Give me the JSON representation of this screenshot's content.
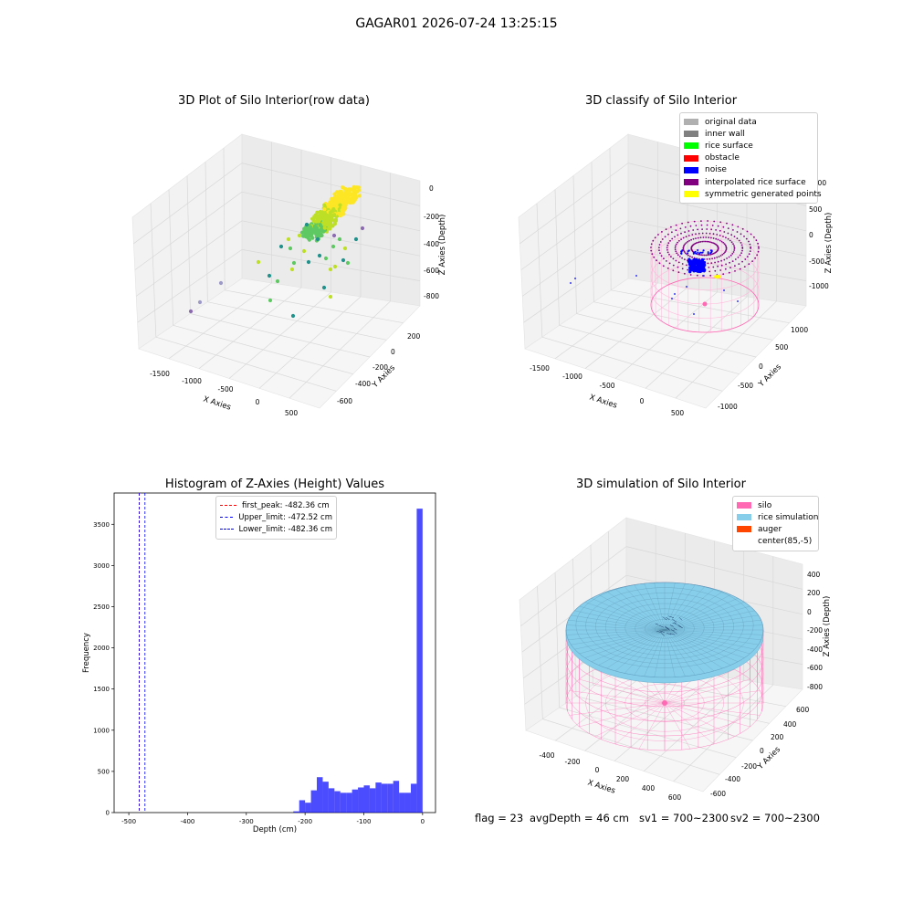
{
  "figure": {
    "suptitle": "GAGAR01 2026-07-24 13:25:15"
  },
  "colors": {
    "rice_gradient": [
      "#3b528b",
      "#21918c",
      "#5ec962",
      "#bddf26",
      "#fde725"
    ],
    "original_data": "#b0b0b0",
    "inner_wall": "#808080",
    "rice_surface": "#00ff00",
    "obstacle": "#ff0000",
    "noise": "#0000ff",
    "interpolated": "#800080",
    "symmetric": "#ffff00",
    "silo": "#ff69b4",
    "rice_simulation": "#87ceeb",
    "auger": "#ff4500",
    "first_peak_line": "#ff0000",
    "limit_lines": "#0000ff",
    "hist_bar": "#0000ff"
  },
  "chart_data": [
    {
      "id": "raw",
      "type": "scatter",
      "projection": "3d",
      "title": "3D Plot of Silo Interior(row data)",
      "xlabel": "X Axies",
      "ylabel": "Y Axies",
      "zlabel": "Z Axies (Depth)",
      "xticks": [
        -1500,
        -1000,
        -500,
        0,
        500
      ],
      "yticks": [
        200,
        0,
        -200,
        -400,
        -600
      ],
      "zticks": [
        0,
        -200,
        -400,
        -600,
        -800
      ],
      "xlim": [
        -1800,
        700
      ],
      "ylim": [
        -700,
        300
      ],
      "zlim": [
        -950,
        50
      ],
      "grid": true,
      "note_points": "dense rice cloud near x≈-200..100, z≈0..-250 plus scattered points down to z≈-900"
    },
    {
      "id": "classify",
      "type": "scatter",
      "projection": "3d",
      "title": "3D classify of Silo Interior",
      "xlabel": "X Axies",
      "ylabel": "Y Axies",
      "zlabel": "Z Axies (Depth)",
      "xticks": [
        -1500,
        -1000,
        -500,
        0,
        500
      ],
      "yticks": [
        1000,
        500,
        0,
        -500,
        -1000
      ],
      "zticks": [
        1000,
        500,
        0,
        -500,
        -1000
      ],
      "legend": [
        "original data",
        "inner wall",
        "rice surface",
        "obstacle",
        "noise",
        "interpolated rice surface",
        "symmetric generated points"
      ],
      "legend_position": "upper right",
      "grid": true
    },
    {
      "id": "hist",
      "type": "bar",
      "title": "Histogram of Z-Axies (Height) Values",
      "xlabel": "Depth (cm)",
      "ylabel": "Frequency",
      "xlim": [
        -525,
        22
      ],
      "ylim": [
        0,
        3880
      ],
      "xticks": [
        -500,
        -400,
        -300,
        -200,
        -100,
        0
      ],
      "yticks": [
        0,
        500,
        1000,
        1500,
        2000,
        2500,
        3000,
        3500
      ],
      "bin_width": 10,
      "bins": [
        {
          "x0": -220,
          "count": 15
        },
        {
          "x0": -210,
          "count": 150
        },
        {
          "x0": -200,
          "count": 120
        },
        {
          "x0": -190,
          "count": 270
        },
        {
          "x0": -180,
          "count": 430
        },
        {
          "x0": -170,
          "count": 375
        },
        {
          "x0": -160,
          "count": 295
        },
        {
          "x0": -150,
          "count": 260
        },
        {
          "x0": -140,
          "count": 240
        },
        {
          "x0": -130,
          "count": 240
        },
        {
          "x0": -120,
          "count": 280
        },
        {
          "x0": -110,
          "count": 305
        },
        {
          "x0": -100,
          "count": 330
        },
        {
          "x0": -90,
          "count": 295
        },
        {
          "x0": -80,
          "count": 365
        },
        {
          "x0": -70,
          "count": 350
        },
        {
          "x0": -60,
          "count": 350
        },
        {
          "x0": -50,
          "count": 385
        },
        {
          "x0": -40,
          "count": 240
        },
        {
          "x0": -30,
          "count": 240
        },
        {
          "x0": -20,
          "count": 350
        },
        {
          "x0": -10,
          "count": 3690
        }
      ],
      "vlines": [
        {
          "label": "first_peak: -482.36 cm",
          "x": -482.36,
          "color": "#ff0000"
        },
        {
          "label": "Upper_limit: -472.52 cm",
          "x": -472.52,
          "color": "#0000ff"
        },
        {
          "label": "Lower_limit: -482.36 cm",
          "x": -482.36,
          "color": "#0000ff"
        }
      ],
      "legend_position": "upper center"
    },
    {
      "id": "sim",
      "type": "surface",
      "projection": "3d",
      "title": "3D simulation of Silo Interior",
      "xlabel": "X Axies",
      "ylabel": "Y Axies",
      "zlabel": "Z Axies (Depth)",
      "xticks": [
        -400,
        -200,
        0,
        200,
        400,
        600
      ],
      "yticks": [
        600,
        400,
        200,
        0,
        -200,
        -400,
        -600
      ],
      "zticks": [
        400,
        200,
        0,
        -200,
        -400,
        -600,
        -800
      ],
      "legend": [
        "silo",
        "rice simulation",
        "auger",
        "center(85,-5)"
      ],
      "legend_position": "upper right",
      "grid": true
    }
  ],
  "footer": {
    "flag": "flag = 23",
    "avg_depth": "avgDepth = 46 cm",
    "sv1": "sv1 = 700~2300",
    "sv2": "sv2 = 700~2300"
  }
}
